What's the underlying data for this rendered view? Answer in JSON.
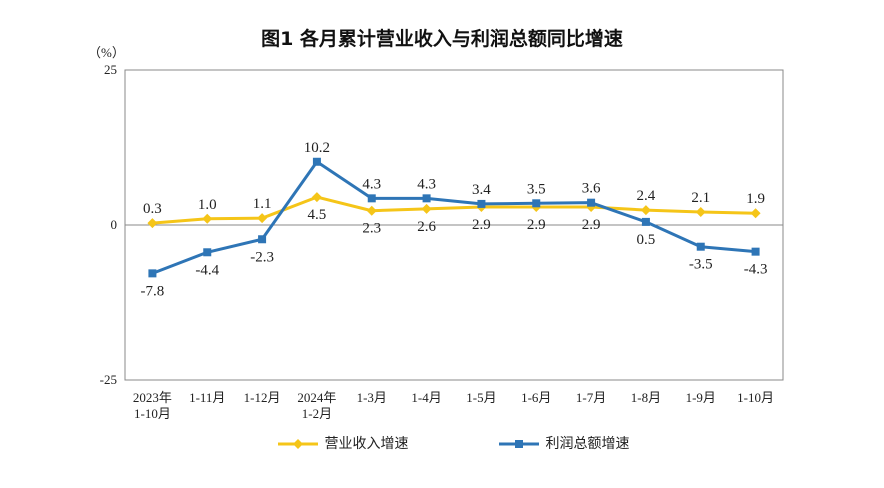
{
  "chart_data": {
    "type": "line",
    "title": "图1  各月累计营业收入与利润总额同比增速",
    "unit": "（%）",
    "categories": [
      [
        "2023年",
        "1-10月"
      ],
      [
        "1-11月"
      ],
      [
        "1-12月"
      ],
      [
        "2024年",
        "1-2月"
      ],
      [
        "1-3月"
      ],
      [
        "1-4月"
      ],
      [
        "1-5月"
      ],
      [
        "1-6月"
      ],
      [
        "1-7月"
      ],
      [
        "1-8月"
      ],
      [
        "1-9月"
      ],
      [
        "1-10月"
      ]
    ],
    "ylim": [
      -25,
      25
    ],
    "yticks": [
      "25",
      "0",
      "-25"
    ],
    "series": [
      {
        "name": "营业收入增速",
        "color": "#F5C518",
        "marker": "diamond",
        "values": [
          0.3,
          1.0,
          1.1,
          4.5,
          2.3,
          2.6,
          2.9,
          2.9,
          2.9,
          2.4,
          2.1,
          1.9
        ],
        "labels": [
          "0.3",
          "1.0",
          "1.1",
          "4.5",
          "2.3",
          "2.6",
          "2.9",
          "2.9",
          "2.9",
          "2.4",
          "2.1",
          "1.9"
        ]
      },
      {
        "name": "利润总额增速",
        "color": "#2E75B6",
        "marker": "square",
        "values": [
          -7.8,
          -4.4,
          -2.3,
          10.2,
          4.3,
          4.3,
          3.4,
          3.5,
          3.6,
          0.5,
          -3.5,
          -4.3
        ],
        "labels": [
          "-7.8",
          "-4.4",
          "-2.3",
          "10.2",
          "4.3",
          "4.3",
          "3.4",
          "3.5",
          "3.6",
          "0.5",
          "-3.5",
          "-4.3"
        ]
      }
    ],
    "grid": false,
    "legend_position": "bottom"
  }
}
